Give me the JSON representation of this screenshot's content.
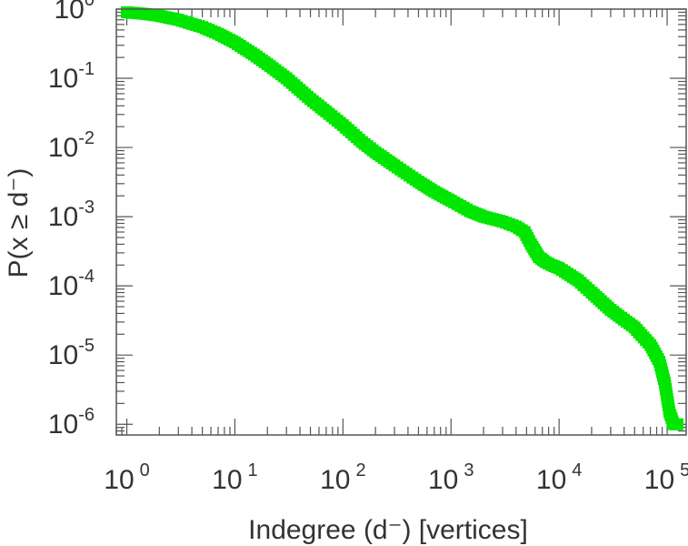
{
  "chart_data": {
    "type": "scatter",
    "xlabel": "Indegree (d⁻) [vertices]",
    "ylabel": "P(x ≥ d⁻)",
    "x_scale": "log",
    "y_scale": "log",
    "xlim": [
      0.8,
      150000
    ],
    "ylim": [
      7e-07,
      1
    ],
    "x_ticks": [
      {
        "base": "10",
        "exp": "0",
        "value": 1
      },
      {
        "base": "10",
        "exp": "1",
        "value": 10
      },
      {
        "base": "10",
        "exp": "2",
        "value": 100
      },
      {
        "base": "10",
        "exp": "3",
        "value": 1000
      },
      {
        "base": "10",
        "exp": "4",
        "value": 10000
      },
      {
        "base": "10",
        "exp": "5",
        "value": 100000
      }
    ],
    "y_ticks": [
      {
        "base": "10",
        "exp": "0",
        "value": 1
      },
      {
        "base": "10",
        "exp": "-1",
        "value": 0.1
      },
      {
        "base": "10",
        "exp": "-2",
        "value": 0.01
      },
      {
        "base": "10",
        "exp": "-3",
        "value": 0.001
      },
      {
        "base": "10",
        "exp": "-4",
        "value": 0.0001
      },
      {
        "base": "10",
        "exp": "-5",
        "value": 1e-05
      },
      {
        "base": "10",
        "exp": "-6",
        "value": 1e-06
      }
    ],
    "grid": false,
    "marker_color": "#00e600",
    "series": [
      {
        "x": [
          1,
          1.5,
          2,
          3,
          5,
          7,
          10,
          15,
          20,
          30,
          50,
          70,
          100,
          150,
          200,
          300,
          500,
          700,
          1000,
          1500,
          2000,
          3000,
          4000,
          4800,
          5500,
          6500,
          7500,
          8500,
          10000,
          12000,
          15000,
          20000,
          30000,
          50000,
          70000,
          85000,
          95000,
          105000,
          115000,
          125000
        ],
        "y": [
          0.9,
          0.85,
          0.8,
          0.7,
          0.55,
          0.44,
          0.33,
          0.22,
          0.16,
          0.1,
          0.05,
          0.033,
          0.021,
          0.012,
          0.0085,
          0.0055,
          0.0032,
          0.0023,
          0.0017,
          0.0012,
          0.001,
          0.00085,
          0.00072,
          0.0006,
          0.0004,
          0.00026,
          0.00022,
          0.0002,
          0.00018,
          0.00015,
          0.00012,
          8e-05,
          4.5e-05,
          2.5e-05,
          1.4e-05,
          8e-06,
          4e-06,
          1.5e-06,
          1e-06,
          1e-06
        ]
      }
    ]
  }
}
